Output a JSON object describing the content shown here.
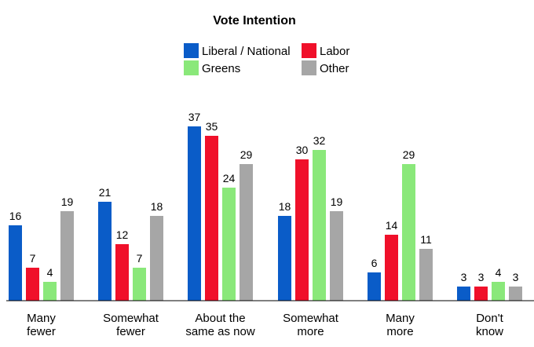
{
  "chart_data": {
    "type": "bar",
    "title": "Vote Intention",
    "xlabel": "",
    "ylabel": "",
    "ylim": [
      0,
      40
    ],
    "grid": false,
    "legend_position": "top-center",
    "categories": [
      [
        "Many",
        "fewer"
      ],
      [
        "Somewhat",
        "fewer"
      ],
      [
        "About the",
        "same as now"
      ],
      [
        "Somewhat",
        "more"
      ],
      [
        "Many",
        "more"
      ],
      [
        "Don't",
        "know"
      ]
    ],
    "series": [
      {
        "name": "Liberal / National",
        "color": "#0a5cc8",
        "values": [
          16,
          21,
          37,
          18,
          6,
          3
        ]
      },
      {
        "name": "Labor",
        "color": "#f0102a",
        "values": [
          7,
          12,
          35,
          30,
          14,
          3
        ]
      },
      {
        "name": "Greens",
        "color": "#8ae87a",
        "values": [
          4,
          7,
          24,
          32,
          29,
          4
        ]
      },
      {
        "name": "Other",
        "color": "#a6a6a6",
        "values": [
          19,
          18,
          29,
          19,
          11,
          3
        ]
      }
    ]
  }
}
